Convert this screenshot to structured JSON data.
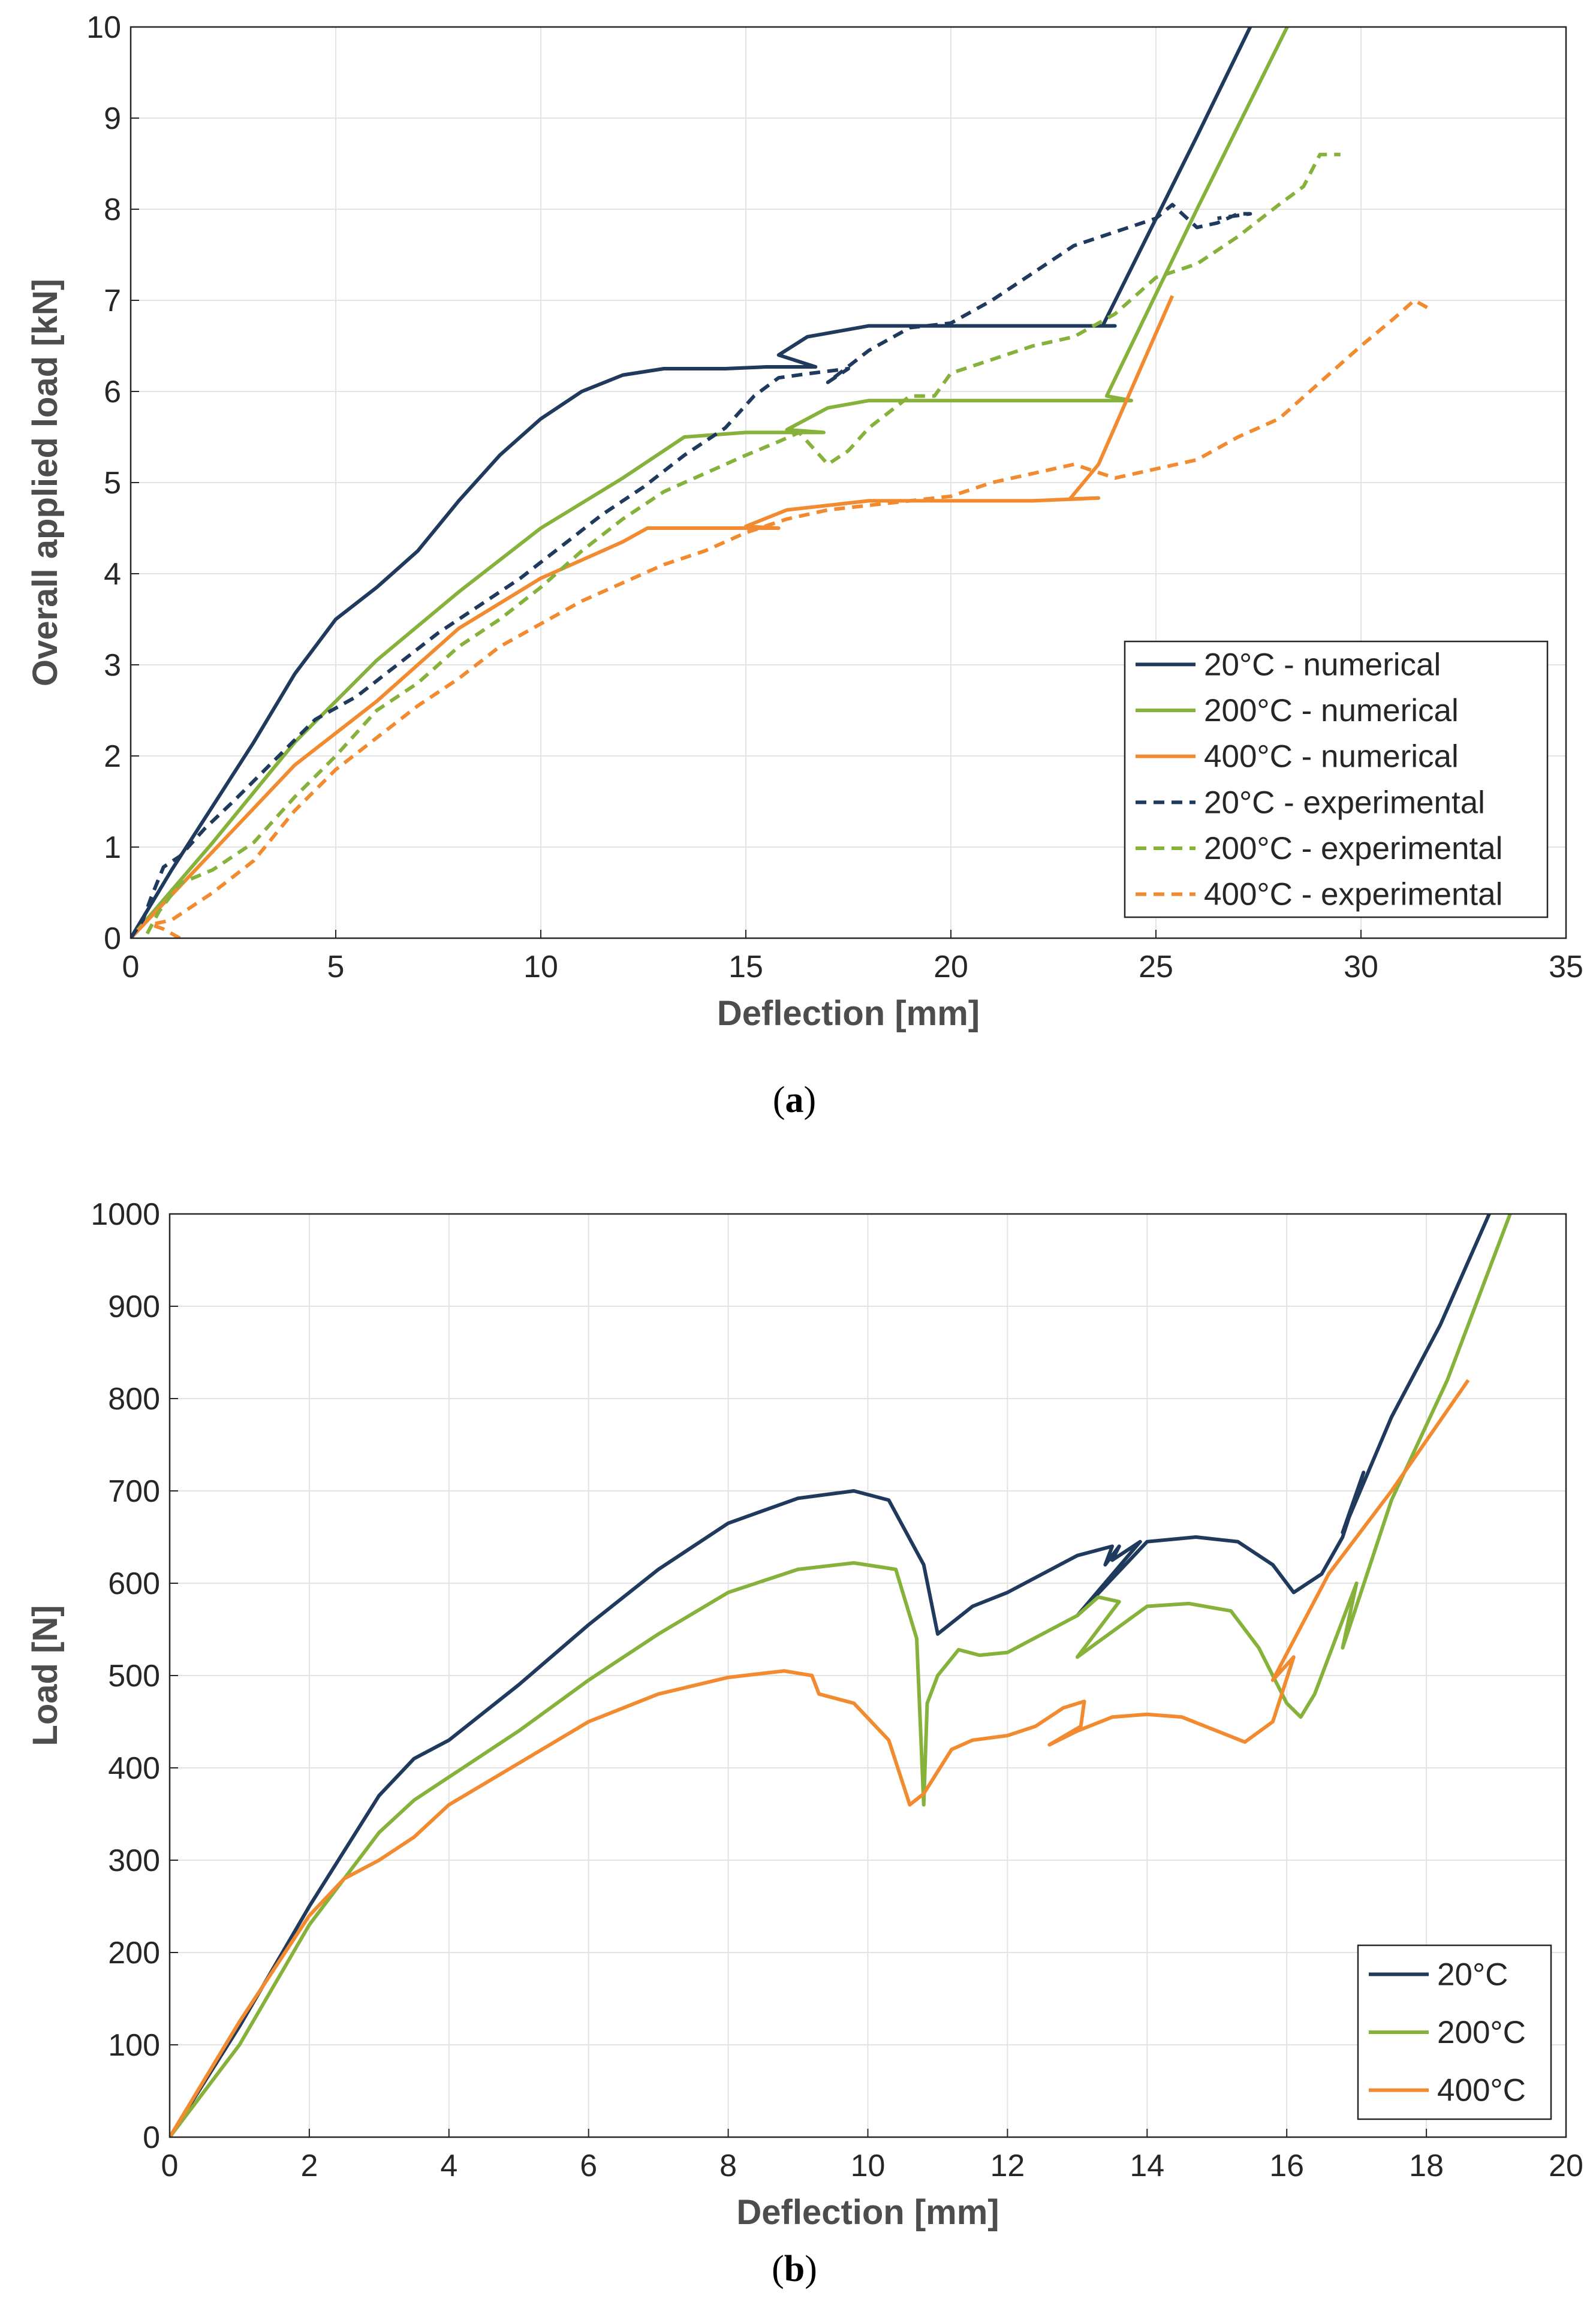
{
  "colors": {
    "c20": "#1f3a5c",
    "c200": "#86b23c",
    "c400": "#f28a2f"
  },
  "captions": {
    "a_open": "(",
    "a_letter": "a",
    "a_close": ")",
    "b_open": "(",
    "b_letter": "b",
    "b_close": ")"
  },
  "chart_data": [
    {
      "type": "line",
      "xlabel": "Deflection [mm]",
      "ylabel": "Overall applied load [kN]",
      "xlim": [
        0,
        35
      ],
      "ylim": [
        0,
        10
      ],
      "xticks": [
        0,
        5,
        10,
        15,
        20,
        25,
        30,
        35
      ],
      "yticks": [
        0,
        1,
        2,
        3,
        4,
        5,
        6,
        7,
        8,
        9,
        10
      ],
      "grid": true,
      "legend_position": "bottom-right",
      "series": [
        {
          "name": "20°C - numerical",
          "color_key": "c20",
          "style": "solid",
          "x": [
            0,
            1,
            2,
            3,
            4,
            5,
            6,
            7,
            8,
            9,
            10,
            11,
            12,
            13,
            13.8,
            14.5,
            15.5,
            16.7,
            15.8,
            16.5,
            18,
            20,
            22,
            23.7,
            24,
            23.7,
            26,
            27.3
          ],
          "y": [
            0,
            0.75,
            1.45,
            2.15,
            2.9,
            3.5,
            3.85,
            4.25,
            4.8,
            5.3,
            5.7,
            6.0,
            6.18,
            6.25,
            6.25,
            6.25,
            6.27,
            6.27,
            6.4,
            6.6,
            6.72,
            6.72,
            6.72,
            6.72,
            6.72,
            6.72,
            8.8,
            10.0
          ]
        },
        {
          "name": "200°C - numerical",
          "color_key": "c200",
          "style": "solid",
          "x": [
            0,
            2,
            4,
            6,
            8,
            10,
            12,
            13.5,
            15,
            16.9,
            16,
            17,
            18,
            20,
            22,
            23.8,
            24.4,
            23.8,
            26,
            28.2
          ],
          "y": [
            0,
            1.05,
            2.15,
            3.05,
            3.8,
            4.5,
            5.05,
            5.5,
            5.55,
            5.55,
            5.58,
            5.82,
            5.9,
            5.9,
            5.9,
            5.9,
            5.9,
            5.95,
            8.0,
            10.0
          ]
        },
        {
          "name": "400°C - numerical",
          "color_key": "c400",
          "style": "solid",
          "x": [
            0,
            2,
            4,
            6,
            8,
            10,
            12,
            12.6,
            14,
            15.8,
            15,
            16,
            18,
            20,
            22,
            23.6,
            22.9,
            23.6,
            25.4
          ],
          "y": [
            0,
            0.95,
            1.9,
            2.6,
            3.4,
            3.95,
            4.35,
            4.5,
            4.5,
            4.5,
            4.52,
            4.7,
            4.8,
            4.8,
            4.8,
            4.83,
            4.82,
            5.2,
            7.05
          ]
        },
        {
          "name": "20°C - experimental",
          "color_key": "c20",
          "style": "dashed",
          "x": [
            0,
            0.3,
            0.5,
            0.8,
            1.2,
            1.8,
            2.5,
            3.5,
            4.5,
            5.5,
            6.5,
            7.5,
            8.5,
            9.5,
            10.5,
            11.5,
            12.5,
            13.5,
            14.5,
            15.2,
            15.8,
            16.6,
            17.5,
            17,
            18,
            19,
            20,
            21,
            22,
            23,
            24,
            25,
            25.4,
            26,
            26.5,
            27,
            27.3,
            26.5
          ],
          "y": [
            0,
            0.2,
            0.45,
            0.78,
            0.9,
            1.2,
            1.5,
            1.95,
            2.4,
            2.65,
            3.0,
            3.35,
            3.65,
            3.95,
            4.3,
            4.65,
            4.95,
            5.3,
            5.6,
            5.95,
            6.15,
            6.2,
            6.25,
            6.1,
            6.45,
            6.7,
            6.75,
            7.0,
            7.3,
            7.6,
            7.75,
            7.9,
            8.05,
            7.8,
            7.85,
            7.95,
            7.95,
            7.9
          ]
        },
        {
          "name": "200°C - experimental",
          "color_key": "c200",
          "style": "dashed",
          "x": [
            0.4,
            0.7,
            1.2,
            2,
            3,
            4,
            5,
            6,
            7,
            8,
            9,
            10,
            11,
            12,
            13,
            14,
            15,
            15.8,
            16.3,
            17,
            17.5,
            18,
            19,
            19.6,
            20,
            21,
            22,
            23,
            24,
            25,
            26,
            27,
            28,
            28.6,
            29,
            29.5
          ],
          "y": [
            0.05,
            0.3,
            0.6,
            0.75,
            1.05,
            1.55,
            2.0,
            2.5,
            2.8,
            3.2,
            3.5,
            3.85,
            4.25,
            4.6,
            4.9,
            5.1,
            5.3,
            5.45,
            5.55,
            5.2,
            5.35,
            5.6,
            5.95,
            5.95,
            6.2,
            6.35,
            6.5,
            6.6,
            6.85,
            7.25,
            7.4,
            7.7,
            8.05,
            8.25,
            8.6,
            8.6
          ]
        },
        {
          "name": "400°C - experimental",
          "color_key": "c400",
          "style": "dashed",
          "x": [
            1.2,
            0.8,
            0.5,
            1,
            2,
            3,
            4,
            5,
            6,
            7,
            8,
            9,
            10,
            11,
            12,
            13,
            14,
            15,
            16,
            17,
            18,
            19,
            20,
            21,
            22,
            23,
            24,
            25,
            26,
            27,
            28,
            29,
            30,
            30.8,
            31.3,
            31.7
          ],
          "y": [
            0.0,
            0.1,
            0.15,
            0.2,
            0.5,
            0.85,
            1.4,
            1.85,
            2.2,
            2.55,
            2.85,
            3.2,
            3.45,
            3.7,
            3.9,
            4.1,
            4.25,
            4.45,
            4.6,
            4.7,
            4.75,
            4.8,
            4.85,
            5.0,
            5.1,
            5.2,
            5.05,
            5.15,
            5.25,
            5.5,
            5.7,
            6.1,
            6.5,
            6.8,
            7.0,
            6.9
          ]
        }
      ]
    },
    {
      "type": "line",
      "xlabel": "Deflection [mm]",
      "ylabel": "Load [N]",
      "xlim": [
        0,
        20
      ],
      "ylim": [
        0,
        1000
      ],
      "xticks": [
        0,
        2,
        4,
        6,
        8,
        10,
        12,
        14,
        16,
        18,
        20
      ],
      "yticks": [
        0,
        100,
        200,
        300,
        400,
        500,
        600,
        700,
        800,
        900,
        1000
      ],
      "grid": true,
      "legend_position": "bottom-right",
      "series": [
        {
          "name": "20°C",
          "color_key": "c20",
          "style": "solid",
          "x": [
            0,
            1,
            2,
            3,
            3.5,
            4,
            5,
            6,
            7,
            8,
            9,
            9.8,
            10.3,
            10.8,
            11,
            11.5,
            12,
            13,
            13.5,
            13.4,
            13.6,
            13.5,
            13.9,
            13,
            14,
            14.7,
            15.3,
            15.8,
            16.1,
            16.5,
            16.8,
            17.1,
            16.8,
            17.5,
            18.2,
            18.9
          ],
          "y": [
            0,
            120,
            250,
            370,
            410,
            430,
            490,
            555,
            615,
            665,
            692,
            700,
            690,
            620,
            545,
            575,
            590,
            630,
            640,
            620,
            640,
            625,
            645,
            565,
            645,
            650,
            645,
            620,
            590,
            610,
            650,
            720,
            655,
            780,
            880,
            1000
          ]
        },
        {
          "name": "200°C",
          "color_key": "c200",
          "style": "solid",
          "x": [
            0,
            1,
            2,
            3,
            3.5,
            4,
            5,
            6,
            7,
            8,
            9,
            9.8,
            10.4,
            10.7,
            10.8,
            10.85,
            11,
            11.3,
            11.6,
            12,
            13,
            13.3,
            13.6,
            13.5,
            13,
            14,
            14.6,
            15.2,
            15.6,
            16,
            16.2,
            16.4,
            16.8,
            17,
            16.8,
            17.5,
            18.3,
            19.2
          ],
          "y": [
            0,
            100,
            230,
            330,
            365,
            390,
            440,
            495,
            545,
            590,
            615,
            622,
            615,
            540,
            360,
            470,
            500,
            528,
            522,
            525,
            565,
            585,
            580,
            570,
            520,
            575,
            578,
            570,
            530,
            470,
            455,
            480,
            560,
            600,
            530,
            690,
            820,
            1000
          ]
        },
        {
          "name": "400°C",
          "color_key": "c400",
          "style": "solid",
          "x": [
            0,
            1,
            2,
            2.5,
            3,
            3.5,
            4,
            5,
            6,
            7,
            8,
            8.8,
            9.2,
            9.3,
            9.8,
            10.3,
            10.6,
            10.8,
            11.2,
            11.5,
            12,
            12.4,
            12.8,
            13.1,
            13.05,
            12.6,
            13,
            13.5,
            14,
            14.5,
            15,
            15.4,
            15.8,
            16.1,
            15.8,
            16.6,
            17.5,
            18.6
          ],
          "y": [
            0,
            125,
            240,
            280,
            300,
            325,
            360,
            405,
            450,
            480,
            498,
            505,
            500,
            480,
            470,
            430,
            360,
            372,
            420,
            430,
            435,
            445,
            465,
            472,
            445,
            425,
            440,
            455,
            458,
            455,
            440,
            428,
            450,
            520,
            495,
            610,
            700,
            820
          ]
        }
      ]
    }
  ]
}
